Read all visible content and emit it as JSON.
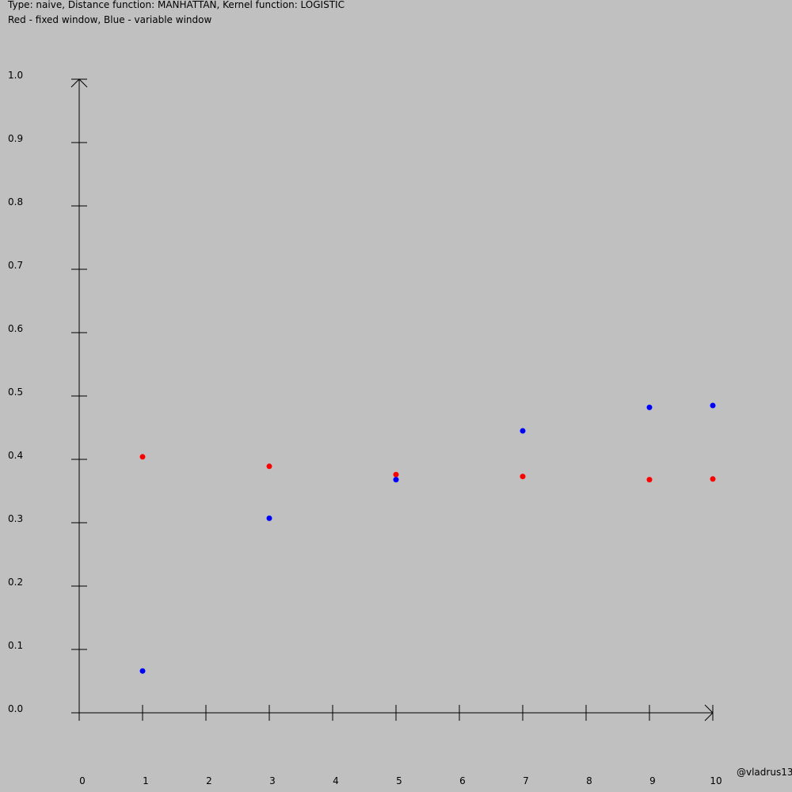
{
  "header": {
    "line1": "Type: naive, Distance function: MANHATTAN, Kernel function: LOGISTIC",
    "line2": "Red - fixed window, Blue - variable window"
  },
  "watermark": "@vladrus13",
  "colors": {
    "background": "#c0c0c0",
    "axis": "#000000",
    "fixed": "#ff0000",
    "variable": "#0000ff"
  },
  "chart_data": {
    "type": "scatter",
    "xlim": [
      0,
      10
    ],
    "ylim": [
      0.0,
      1.0
    ],
    "x_ticks": [
      "0",
      "1",
      "2",
      "3",
      "4",
      "5",
      "6",
      "7",
      "8",
      "9",
      "10"
    ],
    "y_ticks": [
      "0.0",
      "0.1",
      "0.2",
      "0.3",
      "0.4",
      "0.5",
      "0.6",
      "0.7",
      "0.8",
      "0.9",
      "1.0"
    ],
    "grid": false,
    "series": [
      {
        "name": "fixed window",
        "color": "#ff0000",
        "x": [
          1,
          3,
          5,
          7,
          9,
          10
        ],
        "y": [
          0.404,
          0.389,
          0.376,
          0.373,
          0.368,
          0.369
        ]
      },
      {
        "name": "variable window",
        "color": "#0000ff",
        "x": [
          1,
          3,
          5,
          7,
          9,
          10
        ],
        "y": [
          0.066,
          0.307,
          0.368,
          0.445,
          0.482,
          0.485
        ]
      }
    ]
  }
}
